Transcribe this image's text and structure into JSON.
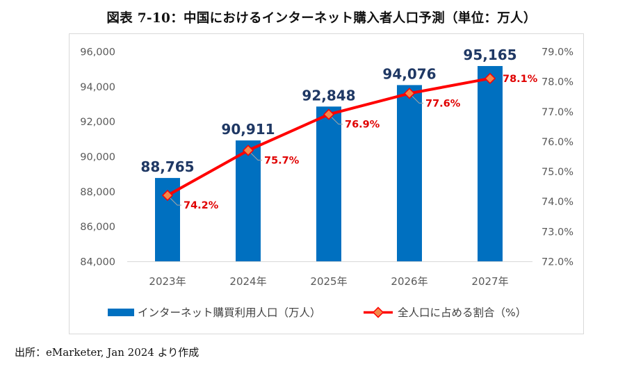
{
  "title": "図表 7-10：中国におけるインターネット購入者人口予測（単位：万人）",
  "source": "出所：eMarketer, Jan 2024 より作成",
  "chart_data": {
    "type": "bar+line",
    "categories": [
      "2023年",
      "2024年",
      "2025年",
      "2026年",
      "2027年"
    ],
    "series": [
      {
        "name": "インターネット購買利用人口（万人）",
        "type": "bar",
        "axis": "left",
        "values": [
          88765,
          90911,
          92848,
          94076,
          95165
        ],
        "labels": [
          "88,765",
          "90,911",
          "92,848",
          "94,076",
          "95,165"
        ],
        "color": "#0070c0",
        "label_color": "#1f3864"
      },
      {
        "name": "全人口に占める割合（%）",
        "type": "line",
        "axis": "right",
        "values": [
          74.2,
          75.7,
          76.9,
          77.6,
          78.1
        ],
        "labels": [
          "74.2%",
          "75.7%",
          "76.9%",
          "77.6%",
          "78.1%"
        ],
        "color": "#ff0000",
        "marker_color": "#f4884a",
        "label_color": "#e00000"
      }
    ],
    "y_left": {
      "min": 84000,
      "max": 96000,
      "ticks": [
        84000,
        86000,
        88000,
        90000,
        92000,
        94000,
        96000
      ],
      "tick_labels": [
        "84,000",
        "86,000",
        "88,000",
        "90,000",
        "92,000",
        "94,000",
        "96,000"
      ]
    },
    "y_right": {
      "min": 72.0,
      "max": 79.0,
      "ticks": [
        72,
        73,
        74,
        75,
        76,
        77,
        78,
        79
      ],
      "tick_labels": [
        "72.0%",
        "73.0%",
        "74.0%",
        "75.0%",
        "76.0%",
        "77.0%",
        "78.0%",
        "79.0%"
      ]
    },
    "grid": false,
    "legend_position": "bottom"
  }
}
